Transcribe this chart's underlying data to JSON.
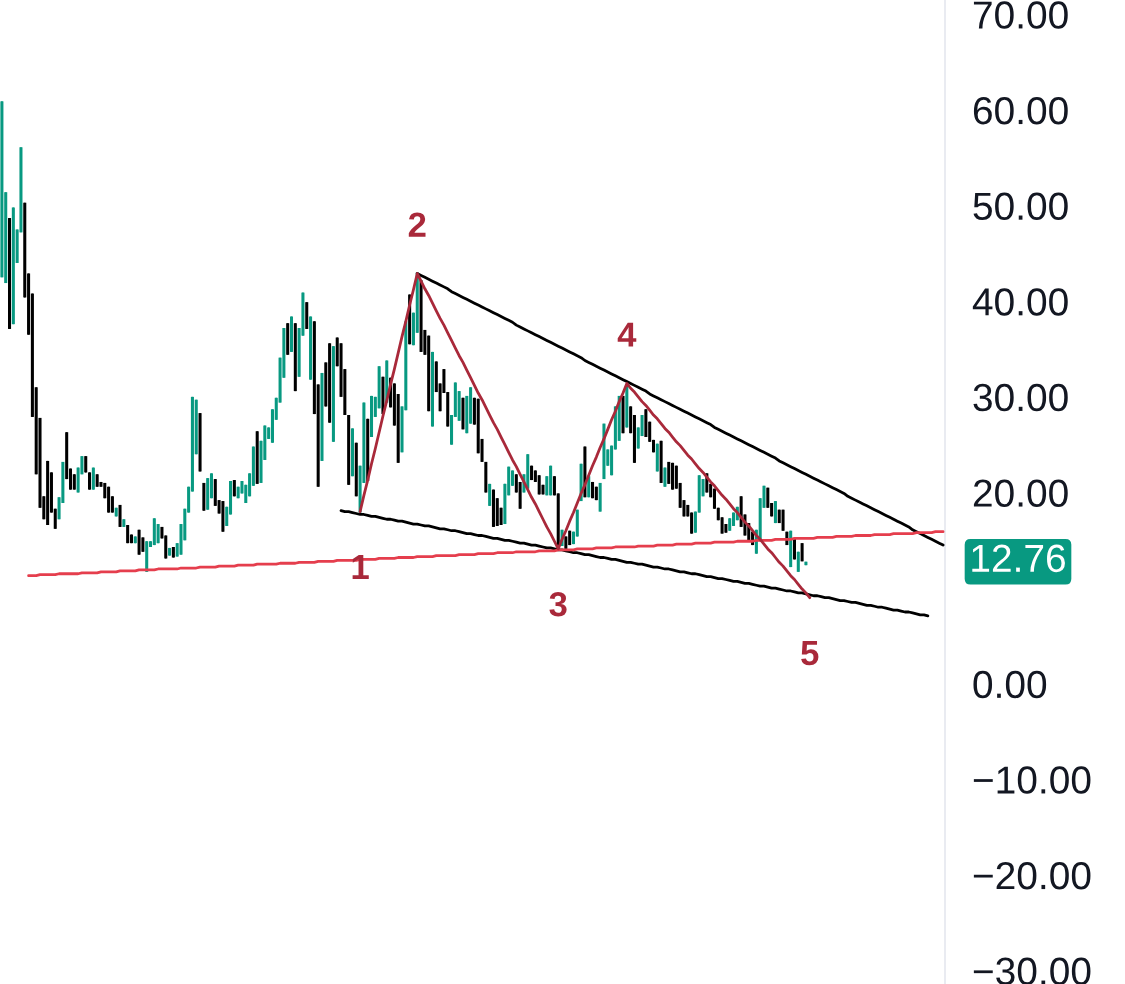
{
  "chart_data": {
    "type": "candlestick",
    "categories": [
      null,
      null,
      null,
      null,
      null,
      null,
      null,
      null,
      null,
      null,
      null,
      null,
      null,
      null,
      null,
      null,
      null,
      null,
      null,
      null,
      null,
      null,
      null,
      null,
      null,
      null,
      null,
      null,
      null,
      null,
      null,
      null,
      null,
      null,
      null,
      null,
      null,
      null,
      null,
      null,
      null,
      null,
      null,
      null,
      null,
      null,
      null,
      null,
      null,
      null,
      null,
      null,
      null,
      null,
      null,
      null,
      null,
      null,
      null,
      null,
      null,
      null,
      null,
      null,
      null,
      null,
      null,
      null,
      null,
      null,
      null,
      null,
      null,
      null,
      null,
      null,
      null,
      null,
      null,
      null,
      null,
      null,
      null,
      null,
      null,
      null,
      null,
      null,
      null,
      null,
      null,
      null,
      null,
      null,
      null,
      null,
      null,
      null,
      null,
      null,
      null,
      null,
      null,
      null,
      null,
      null,
      null,
      null,
      null,
      null,
      null,
      null,
      null,
      null,
      null,
      null,
      null,
      null,
      null,
      null,
      null,
      null,
      null,
      null,
      null,
      null,
      null,
      null,
      null,
      null,
      null,
      null,
      null,
      null,
      null,
      null,
      null,
      null,
      null,
      null,
      null,
      null,
      null,
      null,
      null,
      null,
      null,
      null,
      null,
      null,
      null,
      null,
      null,
      null,
      null,
      null,
      null,
      null,
      null,
      null,
      null,
      null,
      null,
      null,
      null,
      null,
      null,
      null,
      null,
      null,
      null,
      null,
      null,
      null,
      null,
      null,
      null,
      null,
      null,
      null,
      null,
      null,
      null,
      null,
      null,
      null,
      null,
      null,
      null,
      null,
      null,
      null,
      null,
      null,
      null,
      null,
      null,
      null,
      null,
      null,
      null,
      null,
      null,
      null,
      null,
      null,
      null,
      null,
      null,
      null,
      null,
      null,
      null,
      null,
      null,
      null,
      null,
      null,
      null,
      null,
      null,
      null,
      null,
      null,
      null,
      null,
      null,
      null,
      null,
      null,
      null,
      null,
      null,
      null,
      null,
      null,
      null,
      null,
      null,
      null,
      null,
      null,
      null,
      null,
      null,
      null,
      null,
      null
    ],
    "ohlc": [
      [
        42.5,
        60.9,
        42.5,
        60.9
      ],
      [
        41.9,
        51.4,
        41.9,
        51.4
      ],
      [
        48.7,
        48.7,
        37.1,
        37.1
      ],
      [
        37.6,
        49.8,
        37.6,
        49.8
      ],
      [
        44.0,
        47.5,
        44.0,
        47.5
      ],
      [
        47.2,
        56.1,
        47.2,
        56.1
      ],
      [
        50.3,
        50.3,
        40.4,
        40.4
      ],
      [
        42.9,
        42.9,
        36.5,
        36.5
      ],
      [
        40.8,
        40.8,
        27.9,
        27.9
      ],
      [
        31.0,
        31.0,
        21.9,
        21.9
      ],
      [
        27.8,
        27.8,
        18.4,
        18.4
      ],
      [
        19.6,
        19.6,
        17.2,
        17.2
      ],
      [
        23.3,
        23.3,
        16.6,
        16.6
      ],
      [
        22.1,
        22.1,
        17.9,
        17.9
      ],
      [
        18.3,
        18.3,
        16.2,
        16.2
      ],
      [
        17.2,
        19.5,
        17.2,
        19.5
      ],
      [
        18.9,
        23.2,
        18.9,
        23.2
      ],
      [
        26.3,
        26.3,
        21.4,
        21.4
      ],
      [
        22.5,
        22.5,
        20.3,
        20.3
      ],
      [
        21.9,
        21.9,
        20.3,
        20.3
      ],
      [
        20.0,
        22.6,
        20.0,
        22.6
      ],
      [
        21.9,
        23.8,
        21.9,
        23.8
      ],
      [
        23.8,
        23.8,
        22.1,
        22.1
      ],
      [
        22.1,
        22.1,
        20.3,
        20.3
      ],
      [
        20.3,
        22.6,
        20.3,
        22.6
      ],
      [
        21.9,
        21.9,
        20.6,
        20.6
      ],
      [
        21.1,
        21.1,
        20.6,
        20.6
      ],
      [
        21.0,
        21.0,
        19.4,
        19.4
      ],
      [
        20.6,
        20.6,
        17.9,
        17.9
      ],
      [
        19.6,
        19.6,
        17.9,
        17.9
      ],
      [
        17.5,
        18.4,
        17.5,
        18.4
      ],
      [
        18.7,
        18.7,
        16.4,
        16.4
      ],
      [
        16.4,
        17.2,
        16.4,
        17.2
      ],
      [
        16.6,
        16.6,
        14.7,
        14.7
      ],
      [
        15.6,
        15.6,
        14.7,
        14.7
      ],
      [
        14.7,
        15.4,
        14.7,
        15.4
      ],
      [
        16.1,
        16.1,
        13.5,
        13.5
      ],
      [
        15.3,
        15.3,
        13.8,
        13.8
      ],
      [
        11.7,
        14.9,
        11.7,
        14.9
      ],
      [
        14.3,
        14.9,
        14.3,
        14.9
      ],
      [
        14.5,
        17.3,
        14.5,
        17.3
      ],
      [
        14.7,
        16.7,
        14.7,
        16.7
      ],
      [
        16.4,
        16.4,
        15.2,
        15.2
      ],
      [
        15.5,
        15.5,
        13.1,
        13.1
      ],
      [
        13.4,
        14.2,
        13.4,
        14.2
      ],
      [
        14.3,
        14.3,
        13.2,
        13.2
      ],
      [
        13.3,
        14.7,
        13.3,
        14.7
      ],
      [
        13.5,
        16.7,
        13.5,
        16.7
      ],
      [
        15.0,
        18.3,
        15.0,
        18.3
      ],
      [
        17.9,
        20.6,
        17.9,
        20.6
      ],
      [
        20.1,
        30.0,
        20.1,
        30.0
      ],
      [
        24.0,
        29.7,
        24.0,
        29.7
      ],
      [
        28.3,
        28.3,
        22.2,
        22.2
      ],
      [
        21.0,
        21.0,
        18.1,
        18.1
      ],
      [
        18.2,
        21.5,
        18.2,
        21.5
      ],
      [
        19.4,
        22.0,
        19.4,
        22.0
      ],
      [
        21.4,
        21.4,
        18.6,
        18.6
      ],
      [
        19.2,
        19.2,
        17.8,
        17.8
      ],
      [
        19.1,
        19.1,
        15.9,
        15.9
      ],
      [
        16.5,
        18.5,
        16.5,
        18.5
      ],
      [
        17.7,
        21.2,
        17.7,
        21.2
      ],
      [
        21.3,
        21.3,
        19.6,
        19.6
      ],
      [
        19.4,
        20.6,
        19.4,
        20.6
      ],
      [
        19.9,
        21.2,
        19.9,
        21.2
      ],
      [
        18.9,
        20.8,
        18.9,
        20.8
      ],
      [
        19.6,
        22.0,
        19.6,
        22.0
      ],
      [
        20.7,
        24.8,
        20.7,
        24.8
      ],
      [
        26.4,
        26.4,
        20.9,
        20.9
      ],
      [
        21.0,
        25.4,
        21.0,
        25.4
      ],
      [
        23.4,
        27.0,
        23.4,
        27.0
      ],
      [
        25.6,
        26.8,
        25.6,
        26.8
      ],
      [
        25.2,
        28.7,
        25.2,
        28.7
      ],
      [
        27.6,
        29.9,
        27.6,
        29.9
      ],
      [
        29.4,
        34.1,
        29.4,
        34.1
      ],
      [
        32.0,
        37.2,
        32.0,
        37.2
      ],
      [
        37.7,
        37.7,
        34.4,
        34.4
      ],
      [
        34.7,
        38.4,
        34.7,
        38.4
      ],
      [
        37.7,
        37.7,
        30.6,
        30.6
      ],
      [
        32.1,
        37.2,
        32.1,
        37.2
      ],
      [
        36.4,
        40.9,
        36.4,
        40.9
      ],
      [
        39.9,
        39.9,
        37.1,
        37.1
      ],
      [
        31.8,
        38.4,
        31.8,
        38.4
      ],
      [
        37.9,
        37.9,
        28.2,
        28.2
      ],
      [
        31.3,
        31.3,
        20.6,
        20.6
      ],
      [
        23.3,
        32.5,
        23.3,
        32.5
      ],
      [
        33.6,
        33.6,
        29.0,
        29.0
      ],
      [
        35.6,
        35.6,
        27.3,
        27.3
      ],
      [
        25.3,
        35.3,
        25.3,
        35.3
      ],
      [
        36.2,
        36.2,
        33.2,
        33.2
      ],
      [
        35.6,
        35.6,
        30.0,
        30.0
      ],
      [
        32.9,
        32.9,
        28.1,
        28.1
      ],
      [
        28.1,
        28.1,
        20.8,
        20.8
      ],
      [
        21.7,
        26.7,
        21.7,
        26.7
      ],
      [
        25.2,
        25.2,
        19.6,
        19.6
      ],
      [
        17.9,
        22.8,
        17.9,
        22.8
      ],
      [
        21.0,
        29.4,
        21.0,
        29.4
      ],
      [
        27.7,
        27.7,
        21.2,
        21.2
      ],
      [
        25.8,
        30.1,
        25.8,
        30.1
      ],
      [
        27.9,
        30.0,
        27.9,
        30.0
      ],
      [
        28.8,
        33.2,
        28.8,
        33.2
      ],
      [
        32.1,
        32.1,
        28.2,
        28.2
      ],
      [
        29.4,
        33.8,
        29.4,
        33.8
      ],
      [
        32.0,
        32.0,
        28.9,
        28.9
      ],
      [
        31.4,
        31.4,
        27.0,
        27.0
      ],
      [
        30.3,
        30.3,
        23.1,
        23.1
      ],
      [
        24.2,
        29.0,
        24.2,
        29.0
      ],
      [
        28.6,
        37.9,
        28.6,
        37.9
      ],
      [
        40.7,
        40.7,
        35.5,
        35.5
      ],
      [
        35.4,
        38.8,
        35.4,
        38.8
      ],
      [
        36.7,
        43.0,
        36.7,
        43.0
      ],
      [
        42.2,
        42.2,
        34.7,
        34.7
      ],
      [
        37.0,
        37.0,
        34.4,
        34.4
      ],
      [
        36.4,
        36.4,
        28.5,
        28.5
      ],
      [
        26.9,
        34.7,
        26.9,
        34.7
      ],
      [
        33.7,
        33.7,
        30.5,
        30.5
      ],
      [
        31.4,
        31.4,
        28.5,
        28.5
      ],
      [
        32.9,
        32.9,
        30.4,
        30.4
      ],
      [
        30.5,
        30.5,
        26.9,
        26.9
      ],
      [
        25.0,
        28.1,
        25.0,
        28.1
      ],
      [
        27.9,
        31.5,
        27.9,
        31.5
      ],
      [
        27.5,
        30.6,
        27.5,
        30.6
      ],
      [
        29.9,
        29.9,
        26.6,
        26.6
      ],
      [
        26.2,
        30.1,
        26.2,
        30.1
      ],
      [
        27.2,
        31.0,
        27.2,
        31.0
      ],
      [
        29.9,
        29.9,
        27.1,
        27.1
      ],
      [
        29.8,
        29.8,
        24.1,
        24.1
      ],
      [
        25.6,
        25.6,
        23.2,
        23.2
      ],
      [
        23.2,
        23.2,
        20.0,
        20.0
      ],
      [
        18.6,
        20.9,
        18.6,
        20.9
      ],
      [
        20.3,
        20.3,
        16.4,
        16.4
      ],
      [
        19.4,
        19.4,
        16.5,
        16.5
      ],
      [
        18.4,
        18.4,
        16.6,
        16.6
      ],
      [
        16.7,
        20.9,
        16.7,
        20.9
      ],
      [
        19.7,
        22.7,
        19.7,
        22.7
      ],
      [
        20.7,
        22.3,
        20.7,
        22.3
      ],
      [
        21.9,
        21.9,
        20.0,
        20.0
      ],
      [
        21.1,
        21.1,
        18.3,
        18.3
      ],
      [
        20.0,
        21.9,
        20.0,
        21.9
      ],
      [
        20.4,
        24.0,
        20.4,
        24.0
      ],
      [
        22.8,
        22.8,
        21.3,
        21.3
      ],
      [
        22.3,
        22.3,
        21.1,
        21.1
      ],
      [
        21.8,
        21.8,
        19.8,
        19.8
      ],
      [
        20.8,
        20.8,
        19.8,
        19.8
      ],
      [
        19.7,
        21.7,
        19.7,
        21.7
      ],
      [
        19.7,
        22.8,
        19.7,
        22.8
      ],
      [
        21.7,
        21.7,
        19.7,
        19.7
      ],
      [
        19.9,
        19.9,
        14.0,
        14.0
      ],
      [
        14.4,
        16.1,
        14.4,
        16.1
      ],
      [
        15.4,
        15.4,
        14.1,
        14.1
      ],
      [
        16.0,
        16.0,
        14.5,
        14.5
      ],
      [
        14.6,
        15.9,
        14.6,
        15.9
      ],
      [
        15.4,
        18.2,
        15.4,
        18.2
      ],
      [
        19.1,
        23.0,
        19.1,
        23.0
      ],
      [
        24.8,
        24.8,
        19.5,
        19.5
      ],
      [
        19.5,
        21.7,
        19.5,
        21.7
      ],
      [
        21.1,
        21.1,
        19.4,
        19.4
      ],
      [
        20.6,
        20.6,
        19.2,
        19.2
      ],
      [
        18.0,
        21.0,
        18.0,
        21.0
      ],
      [
        21.4,
        27.2,
        21.4,
        27.2
      ],
      [
        22.8,
        24.5,
        22.8,
        24.5
      ],
      [
        21.8,
        24.9,
        21.8,
        24.9
      ],
      [
        24.5,
        29.0,
        24.5,
        29.0
      ],
      [
        25.4,
        30.1,
        25.4,
        30.1
      ],
      [
        30.1,
        30.1,
        26.2,
        26.2
      ],
      [
        26.8,
        31.3,
        26.8,
        31.3
      ],
      [
        29.0,
        29.0,
        26.2,
        26.2
      ],
      [
        28.1,
        28.1,
        23.1,
        23.1
      ],
      [
        24.6,
        26.8,
        24.6,
        26.8
      ],
      [
        25.9,
        28.1,
        25.9,
        28.1
      ],
      [
        28.7,
        28.7,
        25.8,
        25.8
      ],
      [
        27.4,
        27.4,
        25.3,
        25.3
      ],
      [
        25.5,
        25.5,
        24.2,
        24.2
      ],
      [
        22.2,
        25.1,
        22.2,
        25.1
      ],
      [
        25.4,
        25.4,
        21.0,
        21.0
      ],
      [
        20.6,
        22.6,
        20.6,
        22.6
      ],
      [
        23.2,
        23.2,
        20.9,
        20.9
      ],
      [
        23.1,
        23.1,
        20.3,
        20.3
      ],
      [
        22.8,
        22.8,
        20.4,
        20.4
      ],
      [
        21.0,
        21.0,
        18.4,
        18.4
      ],
      [
        19.2,
        19.2,
        17.5,
        17.5
      ],
      [
        18.7,
        18.7,
        17.5,
        17.5
      ],
      [
        17.9,
        17.9,
        15.7,
        15.7
      ],
      [
        15.8,
        18.0,
        15.8,
        18.0
      ],
      [
        17.9,
        21.8,
        17.9,
        21.8
      ],
      [
        19.6,
        21.4,
        19.6,
        21.4
      ],
      [
        22.0,
        22.0,
        20.0,
        20.0
      ],
      [
        20.9,
        20.9,
        19.5,
        19.5
      ],
      [
        20.4,
        20.4,
        18.3,
        18.3
      ],
      [
        18.4,
        18.4,
        17.1,
        17.1
      ],
      [
        17.4,
        17.4,
        15.7,
        15.7
      ],
      [
        16.7,
        16.7,
        15.8,
        15.8
      ],
      [
        16.0,
        17.3,
        16.0,
        17.3
      ],
      [
        16.5,
        17.9,
        16.5,
        17.9
      ],
      [
        17.1,
        18.5,
        17.1,
        18.5
      ],
      [
        19.6,
        19.6,
        16.4,
        16.4
      ],
      [
        17.7,
        17.7,
        15.5,
        15.5
      ],
      [
        16.8,
        16.8,
        14.9,
        14.9
      ],
      [
        15.9,
        15.9,
        14.5,
        14.5
      ],
      [
        13.6,
        16.1,
        13.6,
        16.1
      ],
      [
        14.9,
        19.4,
        14.9,
        19.4
      ],
      [
        18.4,
        20.7,
        18.4,
        20.7
      ],
      [
        20.5,
        20.5,
        18.4,
        18.4
      ],
      [
        18.9,
        18.9,
        17.5,
        17.5
      ],
      [
        16.8,
        19.1,
        16.8,
        19.1
      ],
      [
        18.2,
        18.2,
        16.8,
        16.8
      ],
      [
        18.2,
        18.2,
        16.0,
        16.0
      ],
      [
        15.9,
        15.9,
        14.5,
        14.5
      ],
      [
        12.2,
        16.0,
        12.2,
        16.0
      ],
      [
        15.2,
        15.2,
        13.0,
        13.0
      ],
      [
        11.7,
        13.8,
        11.7,
        13.8
      ],
      [
        14.7,
        14.7,
        12.8,
        12.8
      ],
      [
        12.4,
        12.76,
        12.4,
        12.76
      ],
      null,
      null,
      null,
      null,
      null,
      null,
      null,
      null,
      null,
      null,
      null,
      null,
      null,
      null,
      null,
      null,
      null,
      null,
      null,
      null,
      null,
      null,
      null,
      null,
      null,
      null,
      null,
      null,
      null,
      null,
      null,
      null,
      null,
      null,
      null,
      null
    ],
    "colors": [
      "#089981",
      "#089981",
      "#000000",
      "#089981",
      "#089981",
      "#089981",
      "#000000",
      "#000000",
      "#000000",
      "#000000",
      "#000000",
      "#000000",
      "#000000",
      "#000000",
      "#000000",
      "#089981",
      "#089981",
      "#000000",
      "#000000",
      "#000000",
      "#089981",
      "#089981",
      "#000000",
      "#000000",
      "#089981",
      "#000000",
      "#000000",
      "#000000",
      "#000000",
      "#000000",
      "#089981",
      "#000000",
      "#089981",
      "#000000",
      "#000000",
      "#089981",
      "#000000",
      "#000000",
      "#089981",
      "#089981",
      "#089981",
      "#089981",
      "#000000",
      "#000000",
      "#089981",
      "#000000",
      "#089981",
      "#089981",
      "#089981",
      "#089981",
      "#089981",
      "#089981",
      "#000000",
      "#000000",
      "#089981",
      "#089981",
      "#000000",
      "#000000",
      "#000000",
      "#089981",
      "#089981",
      "#000000",
      "#089981",
      "#089981",
      "#089981",
      "#089981",
      "#089981",
      "#000000",
      "#089981",
      "#089981",
      "#089981",
      "#089981",
      "#089981",
      "#089981",
      "#089981",
      "#000000",
      "#089981",
      "#000000",
      "#089981",
      "#089981",
      "#000000",
      "#089981",
      "#000000",
      "#000000",
      "#089981",
      "#000000",
      "#000000",
      "#089981",
      "#000000",
      "#000000",
      "#000000",
      "#000000",
      "#089981",
      "#000000",
      "#089981",
      "#089981",
      "#000000",
      "#089981",
      "#089981",
      "#089981",
      "#000000",
      "#089981",
      "#000000",
      "#000000",
      "#000000",
      "#089981",
      "#089981",
      "#000000",
      "#089981",
      "#089981",
      "#000000",
      "#000000",
      "#000000",
      "#089981",
      "#000000",
      "#000000",
      "#000000",
      "#000000",
      "#089981",
      "#089981",
      "#089981",
      "#000000",
      "#089981",
      "#089981",
      "#000000",
      "#000000",
      "#000000",
      "#000000",
      "#089981",
      "#000000",
      "#000000",
      "#000000",
      "#089981",
      "#089981",
      "#089981",
      "#000000",
      "#000000",
      "#089981",
      "#089981",
      "#000000",
      "#000000",
      "#000000",
      "#000000",
      "#089981",
      "#089981",
      "#000000",
      "#000000",
      "#089981",
      "#000000",
      "#000000",
      "#089981",
      "#089981",
      "#089981",
      "#000000",
      "#089981",
      "#000000",
      "#000000",
      "#089981",
      "#089981",
      "#089981",
      "#089981",
      "#089981",
      "#089981",
      "#000000",
      "#089981",
      "#000000",
      "#000000",
      "#089981",
      "#089981",
      "#000000",
      "#000000",
      "#000000",
      "#089981",
      "#000000",
      "#089981",
      "#000000",
      "#000000",
      "#000000",
      "#000000",
      "#000000",
      "#000000",
      "#000000",
      "#089981",
      "#089981",
      "#089981",
      "#000000",
      "#000000",
      "#000000",
      "#000000",
      "#000000",
      "#000000",
      "#089981",
      "#089981",
      "#089981",
      "#000000",
      "#000000",
      "#000000",
      "#000000",
      "#089981",
      "#089981",
      "#089981",
      "#000000",
      "#000000",
      "#089981",
      "#000000",
      "#000000",
      "#000000",
      "#089981",
      "#000000",
      "#089981",
      "#000000",
      "#089981",
      null,
      null,
      null,
      null,
      null,
      null,
      null,
      null,
      null,
      null,
      null,
      null,
      null,
      null,
      null,
      null,
      null,
      null,
      null,
      null,
      null,
      null,
      null,
      null,
      null,
      null,
      null,
      null,
      null,
      null,
      null,
      null,
      null,
      null,
      null,
      null
    ],
    "series": [
      {
        "type": "line",
        "color": "#000000",
        "values": [
          null,
          null,
          null,
          null,
          null,
          null,
          null,
          null,
          null,
          null,
          null,
          null,
          null,
          null,
          null,
          null,
          null,
          null,
          null,
          null,
          null,
          null,
          null,
          null,
          null,
          null,
          null,
          null,
          null,
          null,
          null,
          null,
          null,
          null,
          null,
          null,
          null,
          null,
          null,
          null,
          null,
          null,
          null,
          null,
          null,
          null,
          null,
          null,
          null,
          null,
          null,
          null,
          null,
          null,
          null,
          null,
          null,
          null,
          null,
          null,
          null,
          null,
          null,
          null,
          null,
          null,
          null,
          null,
          null,
          null,
          null,
          null,
          null,
          null,
          null,
          null,
          null,
          null,
          null,
          null,
          null,
          null,
          null,
          null,
          null,
          null,
          null,
          null,
          null,
          null,
          null,
          null,
          null,
          null,
          null,
          null,
          null,
          null,
          null,
          null,
          null,
          null,
          null,
          null,
          null,
          null,
          null,
          null,
          null,
          42.9,
          42.7,
          42.5,
          42.3,
          42.1,
          41.9,
          41.7,
          41.5,
          41.3,
          41.0,
          40.8,
          40.6,
          40.4,
          40.2,
          40.0,
          39.8,
          39.6,
          39.4,
          39.2,
          39.0,
          38.8,
          38.6,
          38.4,
          38.2,
          38.0,
          37.8,
          37.5,
          37.3,
          37.1,
          36.9,
          36.7,
          36.5,
          36.3,
          36.1,
          35.9,
          35.7,
          35.5,
          35.3,
          35.1,
          34.9,
          34.7,
          34.5,
          34.3,
          34.1,
          33.8,
          33.6,
          33.4,
          33.2,
          33.0,
          32.8,
          32.6,
          32.4,
          32.2,
          32.0,
          31.8,
          31.6,
          31.4,
          31.2,
          31.0,
          30.8,
          30.6,
          30.3,
          30.1,
          29.9,
          29.7,
          29.5,
          29.3,
          29.1,
          28.9,
          28.7,
          28.5,
          28.3,
          28.1,
          27.9,
          27.7,
          27.5,
          27.3,
          27.1,
          26.8,
          26.6,
          26.4,
          26.2,
          26.0,
          25.8,
          25.6,
          25.4,
          25.2,
          25.0,
          24.8,
          24.6,
          24.4,
          24.2,
          24.0,
          23.8,
          23.6,
          23.3,
          23.1,
          22.9,
          22.7,
          22.5,
          22.3,
          22.1,
          21.9,
          21.7,
          21.5,
          21.3,
          21.1,
          20.9,
          20.7,
          20.5,
          20.3,
          20.1,
          19.9,
          19.6,
          19.4,
          19.2,
          19.0,
          18.8,
          18.6,
          18.4,
          18.2,
          18.0,
          17.8,
          17.6,
          17.4,
          17.2,
          17.0,
          16.8,
          16.6,
          16.4,
          16.1,
          15.9,
          15.7,
          15.5,
          15.3,
          15.1,
          14.9,
          14.7,
          14.5
        ]
      },
      {
        "type": "line",
        "color": "#000000",
        "values": [
          null,
          null,
          null,
          null,
          null,
          null,
          null,
          null,
          null,
          null,
          null,
          null,
          null,
          null,
          null,
          null,
          null,
          null,
          null,
          null,
          null,
          null,
          null,
          null,
          null,
          null,
          null,
          null,
          null,
          null,
          null,
          null,
          null,
          null,
          null,
          null,
          null,
          null,
          null,
          null,
          null,
          null,
          null,
          null,
          null,
          null,
          null,
          null,
          null,
          null,
          null,
          null,
          null,
          null,
          null,
          null,
          null,
          null,
          null,
          null,
          null,
          null,
          null,
          null,
          null,
          null,
          null,
          null,
          null,
          null,
          null,
          null,
          null,
          null,
          null,
          null,
          null,
          null,
          null,
          null,
          null,
          null,
          null,
          null,
          null,
          null,
          null,
          null,
          null,
          18.1,
          18.0,
          18.0,
          17.9,
          17.8,
          17.7,
          17.7,
          17.6,
          17.5,
          17.5,
          17.4,
          17.3,
          17.2,
          17.2,
          17.1,
          17.0,
          17.0,
          16.9,
          16.8,
          16.7,
          16.7,
          16.6,
          16.5,
          16.5,
          16.4,
          16.3,
          16.2,
          16.2,
          16.1,
          16.0,
          16.0,
          15.9,
          15.8,
          15.7,
          15.7,
          15.6,
          15.5,
          15.5,
          15.4,
          15.3,
          15.2,
          15.2,
          15.1,
          15.0,
          15.0,
          14.9,
          14.8,
          14.7,
          14.7,
          14.6,
          14.5,
          14.5,
          14.4,
          14.3,
          14.2,
          14.2,
          14.1,
          14.0,
          14.0,
          13.9,
          13.8,
          13.7,
          13.7,
          13.6,
          13.5,
          13.5,
          13.4,
          13.3,
          13.2,
          13.2,
          13.1,
          13.0,
          13.0,
          12.9,
          12.8,
          12.7,
          12.7,
          12.6,
          12.5,
          12.5,
          12.4,
          12.3,
          12.2,
          12.2,
          12.1,
          12.0,
          12.0,
          11.9,
          11.8,
          11.7,
          11.7,
          11.6,
          11.5,
          11.5,
          11.4,
          11.3,
          11.2,
          11.2,
          11.1,
          11.0,
          11.0,
          10.9,
          10.8,
          10.7,
          10.7,
          10.6,
          10.5,
          10.5,
          10.4,
          10.3,
          10.2,
          10.2,
          10.1,
          10.0,
          10.0,
          9.9,
          9.8,
          9.7,
          9.7,
          9.6,
          9.5,
          9.5,
          9.4,
          9.3,
          9.2,
          9.2,
          9.1,
          9.0,
          9.0,
          8.9,
          8.8,
          8.7,
          8.7,
          8.6,
          8.5,
          8.5,
          8.4,
          8.3,
          8.2,
          8.2,
          8.1,
          8.0,
          8.0,
          7.9,
          7.8,
          7.7,
          7.7,
          7.6,
          7.5,
          7.5,
          7.4,
          7.3,
          7.2,
          7.2,
          7.1,
          null,
          null,
          null,
          null
        ]
      },
      {
        "type": "line",
        "color": "#e53e4d",
        "values": [
          null,
          null,
          null,
          null,
          null,
          null,
          null,
          11.3,
          11.3,
          11.3,
          11.4,
          11.4,
          11.4,
          11.4,
          11.4,
          11.5,
          11.5,
          11.5,
          11.5,
          11.5,
          11.5,
          11.6,
          11.6,
          11.6,
          11.6,
          11.6,
          11.7,
          11.7,
          11.7,
          11.7,
          11.7,
          11.8,
          11.8,
          11.8,
          11.8,
          11.8,
          11.9,
          11.9,
          11.9,
          11.9,
          11.9,
          12.0,
          12.0,
          12.0,
          12.0,
          12.0,
          12.0,
          12.1,
          12.1,
          12.1,
          12.1,
          12.1,
          12.2,
          12.2,
          12.2,
          12.2,
          12.2,
          12.3,
          12.3,
          12.3,
          12.3,
          12.3,
          12.4,
          12.4,
          12.4,
          12.4,
          12.4,
          12.5,
          12.5,
          12.5,
          12.5,
          12.5,
          12.5,
          12.6,
          12.6,
          12.6,
          12.6,
          12.6,
          12.7,
          12.7,
          12.7,
          12.7,
          12.7,
          12.8,
          12.8,
          12.8,
          12.8,
          12.8,
          12.9,
          12.9,
          12.9,
          12.9,
          12.9,
          12.9,
          13.0,
          13.0,
          13.0,
          13.0,
          13.0,
          13.1,
          13.1,
          13.1,
          13.1,
          13.1,
          13.2,
          13.2,
          13.2,
          13.2,
          13.2,
          13.3,
          13.3,
          13.3,
          13.3,
          13.3,
          13.4,
          13.4,
          13.4,
          13.4,
          13.4,
          13.4,
          13.5,
          13.5,
          13.5,
          13.5,
          13.5,
          13.6,
          13.6,
          13.6,
          13.6,
          13.6,
          13.7,
          13.7,
          13.7,
          13.7,
          13.7,
          13.8,
          13.8,
          13.8,
          13.8,
          13.8,
          13.8,
          13.9,
          13.9,
          13.9,
          13.9,
          13.9,
          14.0,
          14.0,
          14.0,
          14.0,
          14.0,
          14.1,
          14.1,
          14.1,
          14.1,
          14.1,
          14.2,
          14.2,
          14.2,
          14.2,
          14.2,
          14.3,
          14.3,
          14.3,
          14.3,
          14.3,
          14.3,
          14.4,
          14.4,
          14.4,
          14.4,
          14.4,
          14.5,
          14.5,
          14.5,
          14.5,
          14.5,
          14.6,
          14.6,
          14.6,
          14.6,
          14.6,
          14.7,
          14.7,
          14.7,
          14.7,
          14.7,
          14.8,
          14.8,
          14.8,
          14.8,
          14.8,
          14.8,
          14.9,
          14.9,
          14.9,
          14.9,
          14.9,
          15.0,
          15.0,
          15.0,
          15.0,
          15.0,
          15.1,
          15.1,
          15.1,
          15.1,
          15.1,
          15.2,
          15.2,
          15.2,
          15.2,
          15.2,
          15.2,
          15.3,
          15.3,
          15.3,
          15.3,
          15.3,
          15.4,
          15.4,
          15.4,
          15.4,
          15.4,
          15.5,
          15.5,
          15.5,
          15.5,
          15.5,
          15.6,
          15.6,
          15.6,
          15.6,
          15.6,
          15.7,
          15.7,
          15.7,
          15.7,
          15.7,
          15.7,
          15.8,
          15.8,
          15.8,
          15.8,
          15.8,
          15.9,
          15.9,
          15.9
        ]
      },
      {
        "type": "line",
        "color": "#a9293a",
        "values": [
          null,
          null,
          null,
          null,
          null,
          null,
          null,
          null,
          null,
          null,
          null,
          null,
          null,
          null,
          null,
          null,
          null,
          null,
          null,
          null,
          null,
          null,
          null,
          null,
          null,
          null,
          null,
          null,
          null,
          null,
          null,
          null,
          null,
          null,
          null,
          null,
          null,
          null,
          null,
          null,
          null,
          null,
          null,
          null,
          null,
          null,
          null,
          null,
          null,
          null,
          null,
          null,
          null,
          null,
          null,
          null,
          null,
          null,
          null,
          null,
          null,
          null,
          null,
          null,
          null,
          null,
          null,
          null,
          null,
          null,
          null,
          null,
          null,
          null,
          null,
          null,
          null,
          null,
          null,
          null,
          null,
          null,
          null,
          null,
          null,
          null,
          null,
          null,
          null,
          null,
          null,
          null,
          null,
          null,
          18.0,
          19.7,
          21.3,
          23.0,
          24.6,
          26.3,
          28.0,
          29.6,
          31.3,
          32.9,
          34.6,
          36.3,
          37.9,
          39.6,
          41.2,
          42.9,
          42.1,
          41.3,
          40.6,
          39.8,
          39.0,
          38.2,
          37.5,
          36.7,
          35.9,
          35.1,
          34.3,
          33.6,
          32.8,
          32.0,
          31.2,
          30.4,
          29.7,
          28.9,
          28.1,
          27.3,
          26.6,
          25.8,
          25.0,
          24.2,
          23.4,
          22.7,
          21.9,
          21.1,
          20.3,
          19.5,
          18.8,
          18.0,
          17.2,
          16.4,
          15.7,
          14.9,
          14.1,
          15.1,
          16.0,
          17.0,
          17.9,
          18.9,
          19.9,
          20.8,
          21.8,
          22.8,
          23.7,
          24.7,
          25.6,
          26.6,
          27.6,
          28.5,
          29.5,
          30.4,
          31.4,
          30.9,
          30.5,
          30.0,
          29.5,
          29.1,
          28.6,
          28.1,
          27.7,
          27.2,
          26.7,
          26.3,
          25.8,
          25.3,
          24.9,
          24.4,
          23.9,
          23.5,
          23.0,
          22.5,
          22.1,
          21.6,
          21.1,
          20.7,
          20.2,
          19.7,
          19.3,
          18.8,
          18.3,
          17.9,
          17.4,
          16.9,
          16.5,
          16.0,
          15.5,
          15.1,
          14.6,
          14.1,
          13.7,
          13.2,
          12.7,
          12.3,
          11.8,
          11.3,
          10.9,
          10.4,
          9.9,
          9.5,
          9.0,
          null,
          null,
          null,
          null,
          null,
          null,
          null,
          null,
          null,
          null,
          null,
          null,
          null,
          null,
          null,
          null,
          null,
          null,
          null,
          null,
          null,
          null,
          null,
          null,
          null,
          null,
          null,
          null,
          null,
          null,
          null,
          null,
          null,
          null,
          null
        ]
      }
    ],
    "annotations": [
      "12.76",
      "1",
      "2",
      "3",
      "4",
      "5"
    ],
    "ylim": [
      -31.4,
      71.5
    ],
    "yticks": [
      {
        "value": 70,
        "label": "70.00"
      },
      {
        "value": 60,
        "label": "60.00"
      },
      {
        "value": 50,
        "label": "50.00"
      },
      {
        "value": 40,
        "label": "40.00"
      },
      {
        "value": 30,
        "label": "30.00"
      },
      {
        "value": 20,
        "label": "20.00"
      },
      {
        "value": 0,
        "label": "0.00"
      },
      {
        "value": -10,
        "label": "−10.00"
      },
      {
        "value": -20,
        "label": "−20.00"
      },
      {
        "value": -30,
        "label": "−30.00"
      }
    ],
    "tick_labels": "y"
  }
}
